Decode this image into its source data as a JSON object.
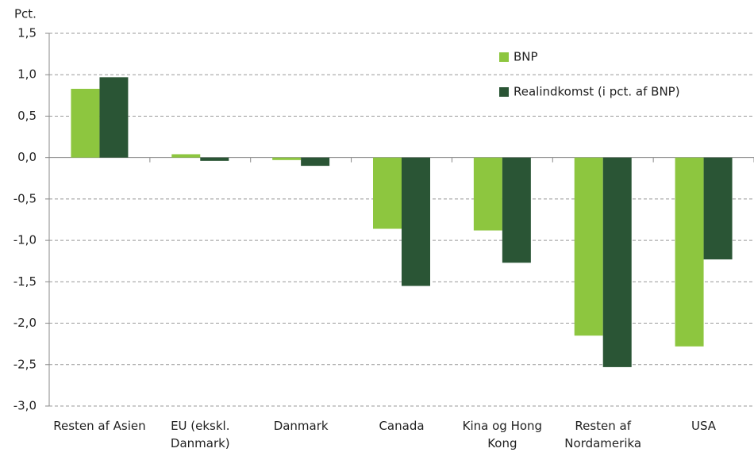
{
  "chart_data": {
    "type": "bar",
    "ylabel": "Pct.",
    "categories": [
      "Resten af Asien",
      "EU (ekskl. Danmark)",
      "Danmark",
      "Canada",
      "Kina og Hong Kong",
      "Resten af Nordamerika",
      "USA"
    ],
    "series": [
      {
        "name": "BNP",
        "color": "#8dc63f",
        "values": [
          0.83,
          0.04,
          -0.03,
          -0.86,
          -0.88,
          -2.15,
          -2.28
        ]
      },
      {
        "name": "Realindkomst (i pct. af BNP)",
        "color": "#2a5535",
        "values": [
          0.97,
          -0.04,
          -0.1,
          -1.55,
          -1.27,
          -2.53,
          -1.23
        ]
      }
    ],
    "ylim": [
      -3.0,
      1.5
    ],
    "yticks": [
      {
        "value": 1.5,
        "label": "1,5"
      },
      {
        "value": 1.0,
        "label": "1,0"
      },
      {
        "value": 0.5,
        "label": "0,5"
      },
      {
        "value": 0.0,
        "label": "0,0"
      },
      {
        "value": -0.5,
        "label": "-0,5"
      },
      {
        "value": -1.0,
        "label": "-1,0"
      },
      {
        "value": -1.5,
        "label": "-1,5"
      },
      {
        "value": -2.0,
        "label": "-2,0"
      },
      {
        "value": -2.5,
        "label": "-2,5"
      },
      {
        "value": -3.0,
        "label": "-3,0"
      }
    ],
    "grid": true,
    "legend": "top-right"
  }
}
